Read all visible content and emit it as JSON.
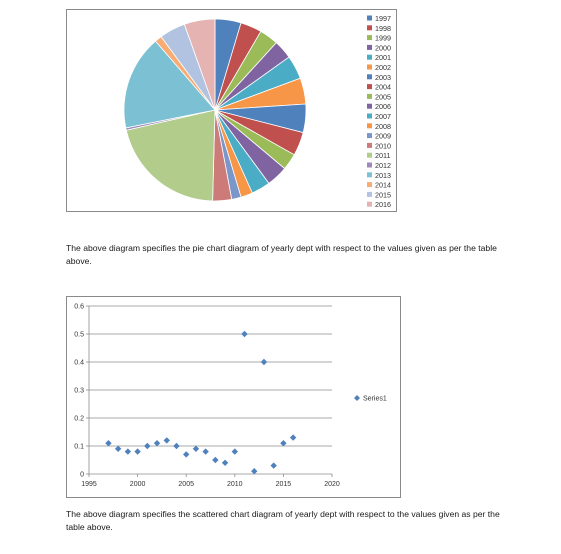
{
  "chart_data": [
    {
      "type": "pie",
      "title": "",
      "categories": [
        "1997",
        "1998",
        "1999",
        "2000",
        "2001",
        "2002",
        "2003",
        "2004",
        "2005",
        "2006",
        "2007",
        "2008",
        "2009",
        "2010",
        "2011",
        "2012",
        "2013",
        "2014",
        "2015",
        "2016"
      ],
      "values": [
        0.11,
        0.09,
        0.08,
        0.08,
        0.1,
        0.11,
        0.12,
        0.1,
        0.07,
        0.09,
        0.08,
        0.05,
        0.04,
        0.08,
        0.5,
        0.01,
        0.4,
        0.03,
        0.11,
        0.13
      ],
      "colors": [
        "#4f81bd",
        "#c0504d",
        "#9bbb59",
        "#8064a2",
        "#4bacc6",
        "#f79646",
        "#4f81bd",
        "#c0504d",
        "#9bbb59",
        "#8064a2",
        "#4bacc6",
        "#f79646",
        "#7b96c9",
        "#cd7b79",
        "#b2cc8c",
        "#9d89ba",
        "#7bc0d3",
        "#f8ac74",
        "#b1c3e0",
        "#e4b3b2"
      ],
      "legend_position": "right"
    },
    {
      "type": "scatter",
      "title": "",
      "series": [
        {
          "name": "Series1",
          "color": "#4f81bd",
          "x": [
            1997,
            1998,
            1999,
            2000,
            2001,
            2002,
            2003,
            2004,
            2005,
            2006,
            2007,
            2008,
            2009,
            2010,
            2011,
            2012,
            2013,
            2014,
            2015,
            2016
          ],
          "y": [
            0.11,
            0.09,
            0.08,
            0.08,
            0.1,
            0.11,
            0.12,
            0.1,
            0.07,
            0.09,
            0.08,
            0.05,
            0.04,
            0.08,
            0.5,
            0.01,
            0.4,
            0.03,
            0.11,
            0.13
          ]
        }
      ],
      "xlim": [
        1995,
        2020
      ],
      "ylim": [
        0,
        0.6
      ],
      "x_ticks": [
        "1995",
        "2000",
        "2005",
        "2010",
        "2015",
        "2020"
      ],
      "y_ticks": [
        "0",
        "0.1",
        "0.2",
        "0.3",
        "0.4",
        "0.5",
        "0.6"
      ],
      "grid": true,
      "legend_position": "right"
    }
  ],
  "text": {
    "pie_caption": "The above diagram specifies the pie chart diagram of yearly dept with respect to the values given as per the table above.",
    "scatter_caption": "The above diagram specifies the scattered chart diagram of yearly dept with respect to the values given as per the table above."
  }
}
